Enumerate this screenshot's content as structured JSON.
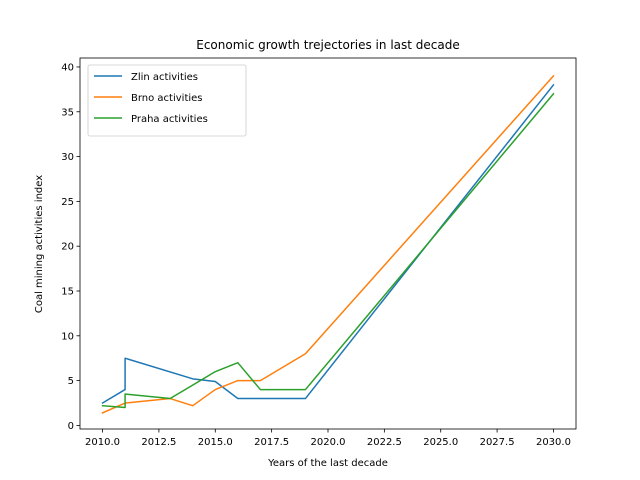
{
  "chart_data": {
    "type": "line",
    "title": "Economic growth trejectories in last decade",
    "xlabel": "Years of the last decade",
    "ylabel": "Coal mining activities index",
    "xlim": [
      2009,
      2031
    ],
    "ylim": [
      -0.4,
      41
    ],
    "xticks": [
      2010.0,
      2012.5,
      2015.0,
      2017.5,
      2020.0,
      2022.5,
      2025.0,
      2027.5,
      2030.0
    ],
    "xtick_labels": [
      "2010.0",
      "2012.5",
      "2015.0",
      "2017.5",
      "2020.0",
      "2022.5",
      "2025.0",
      "2027.5",
      "2030.0"
    ],
    "yticks": [
      0,
      5,
      10,
      15,
      20,
      25,
      30,
      35,
      40
    ],
    "ytick_labels": [
      "0",
      "5",
      "10",
      "15",
      "20",
      "25",
      "30",
      "35",
      "40"
    ],
    "grid": false,
    "legend_position": "top-left",
    "series": [
      {
        "name": "Zlin activities",
        "color": "#1f77b4",
        "x": [
          2010,
          2011,
          2011,
          2014,
          2015,
          2016,
          2017,
          2019,
          2030
        ],
        "y": [
          2.5,
          4.0,
          7.5,
          5.2,
          4.9,
          3.0,
          3.0,
          3.0,
          38
        ]
      },
      {
        "name": "Brno activities",
        "color": "#ff7f0e",
        "x": [
          2010,
          2011,
          2013,
          2014,
          2015,
          2016,
          2017,
          2019,
          2030
        ],
        "y": [
          1.4,
          2.5,
          3.0,
          2.2,
          4.0,
          5.0,
          5.0,
          8.0,
          39
        ]
      },
      {
        "name": "Praha activities",
        "color": "#2ca02c",
        "x": [
          2010,
          2011,
          2011,
          2013,
          2015,
          2016,
          2017,
          2019,
          2030
        ],
        "y": [
          2.2,
          2.0,
          3.5,
          3.0,
          6.0,
          7.0,
          4.0,
          4.0,
          37
        ]
      }
    ]
  }
}
